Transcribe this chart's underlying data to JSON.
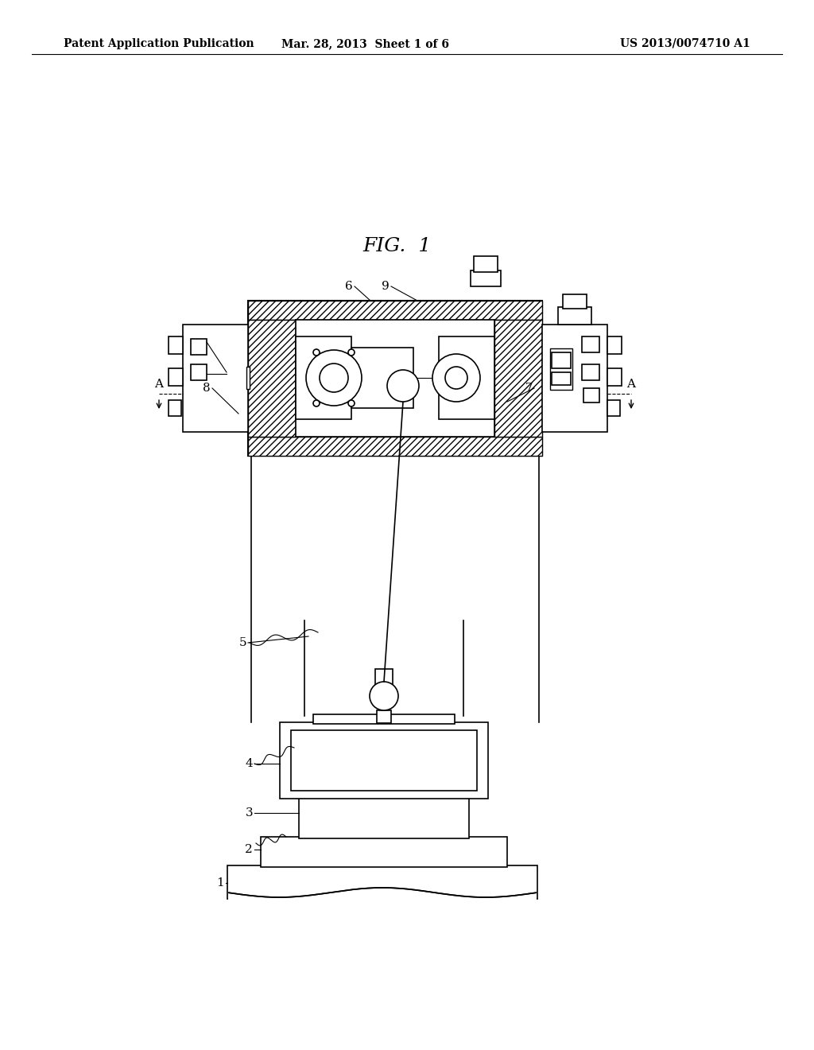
{
  "header_left": "Patent Application Publication",
  "header_center": "Mar. 28, 2013  Sheet 1 of 6",
  "header_right": "US 2013/0074710 A1",
  "title": "FIG.  1",
  "background": "#ffffff"
}
